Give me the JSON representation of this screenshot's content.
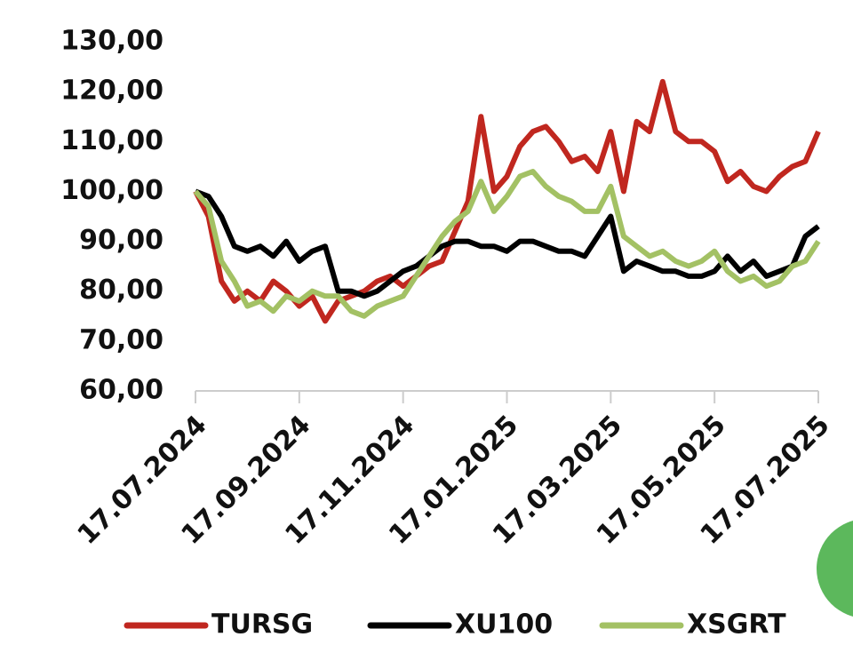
{
  "chart_data": {
    "type": "line",
    "categories": [
      "17.07.2024",
      null,
      null,
      null,
      null,
      null,
      null,
      null,
      "17.09.2024",
      null,
      null,
      null,
      null,
      null,
      null,
      null,
      "17.11.2024",
      null,
      null,
      null,
      null,
      null,
      null,
      null,
      "17.01.2025",
      null,
      null,
      null,
      null,
      null,
      null,
      null,
      "17.03.2025",
      null,
      null,
      null,
      null,
      null,
      null,
      null,
      "17.05.2025",
      null,
      null,
      null,
      null,
      null,
      null,
      null,
      "17.07.2025"
    ],
    "series": [
      {
        "name": "TURSG",
        "color": "#c0271f",
        "values": [
          100,
          95,
          82,
          78,
          80,
          78,
          82,
          80,
          77,
          79,
          74,
          78,
          79,
          80,
          82,
          83,
          81,
          83,
          85,
          86,
          92,
          98,
          115,
          100,
          103,
          109,
          112,
          113,
          110,
          106,
          107,
          104,
          112,
          100,
          114,
          112,
          122,
          112,
          110,
          110,
          108,
          102,
          104,
          101,
          100,
          103,
          105,
          106,
          112
        ]
      },
      {
        "name": "XU100",
        "color": "#000000",
        "values": [
          100,
          99,
          95,
          89,
          88,
          89,
          87,
          90,
          86,
          88,
          89,
          80,
          80,
          79,
          80,
          82,
          84,
          85,
          87,
          89,
          90,
          90,
          89,
          89,
          88,
          90,
          90,
          89,
          88,
          88,
          87,
          91,
          95,
          84,
          86,
          85,
          84,
          84,
          83,
          83,
          84,
          87,
          84,
          86,
          83,
          84,
          85,
          91,
          93
        ]
      },
      {
        "name": "XSGRT",
        "color": "#a3c164",
        "values": [
          100,
          97,
          86,
          82,
          77,
          78,
          76,
          79,
          78,
          80,
          79,
          79,
          76,
          75,
          77,
          78,
          79,
          83,
          87,
          91,
          94,
          96,
          102,
          96,
          99,
          103,
          104,
          101,
          99,
          98,
          96,
          96,
          101,
          91,
          89,
          87,
          88,
          86,
          85,
          86,
          88,
          84,
          82,
          83,
          81,
          82,
          85,
          86,
          90
        ]
      }
    ],
    "ylim": [
      60,
      130
    ],
    "yticks": [
      {
        "value": 60,
        "label": "60,00"
      },
      {
        "value": 70,
        "label": "70,00"
      },
      {
        "value": 80,
        "label": "80,00"
      },
      {
        "value": 90,
        "label": "90,00"
      },
      {
        "value": 100,
        "label": "100,00"
      },
      {
        "value": 110,
        "label": "110,00"
      },
      {
        "value": 120,
        "label": "120,00"
      },
      {
        "value": 130,
        "label": "130,00"
      }
    ],
    "grid": false,
    "legend": "bottom"
  }
}
